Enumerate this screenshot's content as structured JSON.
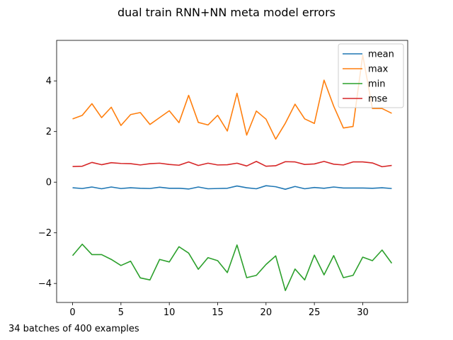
{
  "chart_data": {
    "type": "line",
    "title": "dual train RNN+NN meta model errors",
    "xlabel": "",
    "ylabel": "",
    "footnote": "34 batches of 400 examples",
    "xlim": [
      -1.65,
      34.65
    ],
    "ylim": [
      -4.75,
      5.6
    ],
    "xticks": [
      0,
      5,
      10,
      15,
      20,
      25,
      30
    ],
    "yticks": [
      -4,
      -2,
      0,
      2,
      4
    ],
    "legend": "top-right",
    "grid": false,
    "x": [
      0,
      1,
      2,
      3,
      4,
      5,
      6,
      7,
      8,
      9,
      10,
      11,
      12,
      13,
      14,
      15,
      16,
      17,
      18,
      19,
      20,
      21,
      22,
      23,
      24,
      25,
      26,
      27,
      28,
      29,
      30,
      31,
      32,
      33
    ],
    "series": [
      {
        "name": "mean",
        "color": "#1f77b4",
        "values": [
          -0.22,
          -0.25,
          -0.19,
          -0.26,
          -0.19,
          -0.25,
          -0.22,
          -0.24,
          -0.25,
          -0.2,
          -0.24,
          -0.24,
          -0.27,
          -0.19,
          -0.26,
          -0.25,
          -0.24,
          -0.15,
          -0.22,
          -0.26,
          -0.14,
          -0.18,
          -0.28,
          -0.17,
          -0.26,
          -0.21,
          -0.24,
          -0.19,
          -0.23,
          -0.23,
          -0.23,
          -0.24,
          -0.22,
          -0.25
        ]
      },
      {
        "name": "max",
        "color": "#ff7f0e",
        "values": [
          2.5,
          2.64,
          3.1,
          2.55,
          2.96,
          2.24,
          2.67,
          2.75,
          2.28,
          2.55,
          2.82,
          2.35,
          3.43,
          2.36,
          2.26,
          2.64,
          2.02,
          3.51,
          1.86,
          2.81,
          2.49,
          1.7,
          2.33,
          3.08,
          2.5,
          2.32,
          4.03,
          3.0,
          2.14,
          2.2,
          5.02,
          2.91,
          2.91,
          2.72
        ]
      },
      {
        "name": "min",
        "color": "#2ca02c",
        "values": [
          -2.9,
          -2.45,
          -2.86,
          -2.86,
          -3.05,
          -3.29,
          -3.12,
          -3.78,
          -3.86,
          -3.05,
          -3.15,
          -2.55,
          -2.8,
          -3.44,
          -2.98,
          -3.1,
          -3.57,
          -2.48,
          -3.77,
          -3.68,
          -3.25,
          -2.91,
          -4.28,
          -3.43,
          -3.86,
          -2.88,
          -3.66,
          -2.9,
          -3.77,
          -3.68,
          -2.96,
          -3.1,
          -2.68,
          -3.2
        ]
      },
      {
        "name": "mse",
        "color": "#d62728",
        "values": [
          0.62,
          0.63,
          0.78,
          0.69,
          0.77,
          0.74,
          0.73,
          0.68,
          0.73,
          0.75,
          0.7,
          0.67,
          0.8,
          0.66,
          0.75,
          0.68,
          0.69,
          0.75,
          0.64,
          0.82,
          0.63,
          0.65,
          0.81,
          0.8,
          0.7,
          0.72,
          0.82,
          0.71,
          0.68,
          0.8,
          0.8,
          0.76,
          0.61,
          0.66
        ]
      }
    ]
  }
}
